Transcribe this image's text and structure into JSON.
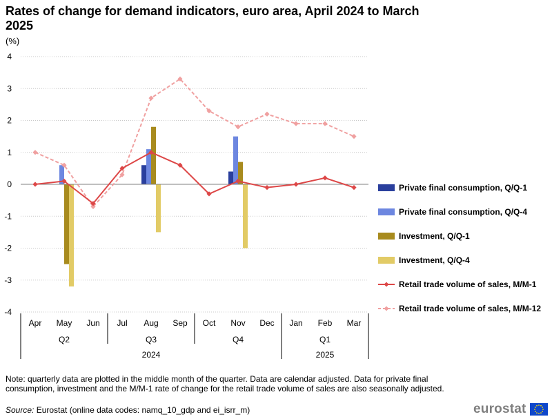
{
  "header": {
    "title": "Rates of change for demand indicators, euro area, April 2024 to March 2025",
    "unit": "(%)"
  },
  "chart_data": {
    "type": "bar",
    "yticks": [
      "4",
      "3",
      "2",
      "1",
      "0",
      "-1",
      "-2",
      "-3",
      "-4"
    ],
    "ylim": [
      -4,
      4
    ],
    "grid": true,
    "legend_position": "right",
    "months": [
      "Apr",
      "May",
      "Jun",
      "Jul",
      "Aug",
      "Sep",
      "Oct",
      "Nov",
      "Dec",
      "Jan",
      "Feb",
      "Mar"
    ],
    "quarters": [
      {
        "label": "Q2",
        "from": 0,
        "to": 3
      },
      {
        "label": "Q3",
        "from": 3,
        "to": 6
      },
      {
        "label": "Q4",
        "from": 6,
        "to": 9
      },
      {
        "label": "Q1",
        "from": 9,
        "to": 12
      }
    ],
    "years": [
      {
        "label": "2024",
        "from": 0,
        "to": 9
      },
      {
        "label": "2025",
        "from": 9,
        "to": 12
      }
    ],
    "bar_series": [
      {
        "name": "Private final consumption, Q/Q-1",
        "color": "#2a3f9d",
        "values": [
          null,
          0.0,
          null,
          null,
          0.6,
          null,
          null,
          0.4,
          null,
          null,
          null,
          null
        ]
      },
      {
        "name": "Private final consumption, Q/Q-4",
        "color": "#6d87e0",
        "values": [
          null,
          0.6,
          null,
          null,
          1.1,
          null,
          null,
          1.5,
          null,
          null,
          null,
          null
        ]
      },
      {
        "name": "Investment, Q/Q-1",
        "color": "#a88b1e",
        "values": [
          null,
          -2.5,
          null,
          null,
          1.8,
          null,
          null,
          0.7,
          null,
          null,
          null,
          null
        ]
      },
      {
        "name": "Investment, Q/Q-4",
        "color": "#e2cb66",
        "values": [
          null,
          -3.2,
          null,
          null,
          -1.5,
          null,
          null,
          -2.0,
          null,
          null,
          null,
          null
        ]
      }
    ],
    "line_series": [
      {
        "name": "Retail trade volume of sales, M/M-1",
        "color": "#dd4747",
        "dashed": false,
        "values": [
          0.0,
          0.1,
          -0.6,
          0.5,
          1.0,
          0.6,
          -0.3,
          0.1,
          -0.1,
          0.0,
          0.2,
          -0.1
        ]
      },
      {
        "name": "Retail trade volume of sales, M/M-12",
        "color": "#f0a0a0",
        "dashed": true,
        "values": [
          1.0,
          0.6,
          -0.7,
          0.3,
          2.7,
          3.3,
          2.3,
          1.8,
          2.2,
          1.9,
          1.9,
          1.5
        ]
      }
    ]
  },
  "footer": {
    "note": "Note: quarterly data are plotted in the middle month of the quarter. Data are calendar adjusted. Data for private final consumption, investment and the M/M-1 rate of change for the retail trade volume of sales are also seasonally adjusted.",
    "source_label": "Source:",
    "source_text": " Eurostat (online data codes: namq_10_gdp and ei_isrr_m)",
    "logo_text": "eurostat",
    "logo_flag_color": "#0e47cb",
    "logo_star_color": "#ffdd00"
  }
}
